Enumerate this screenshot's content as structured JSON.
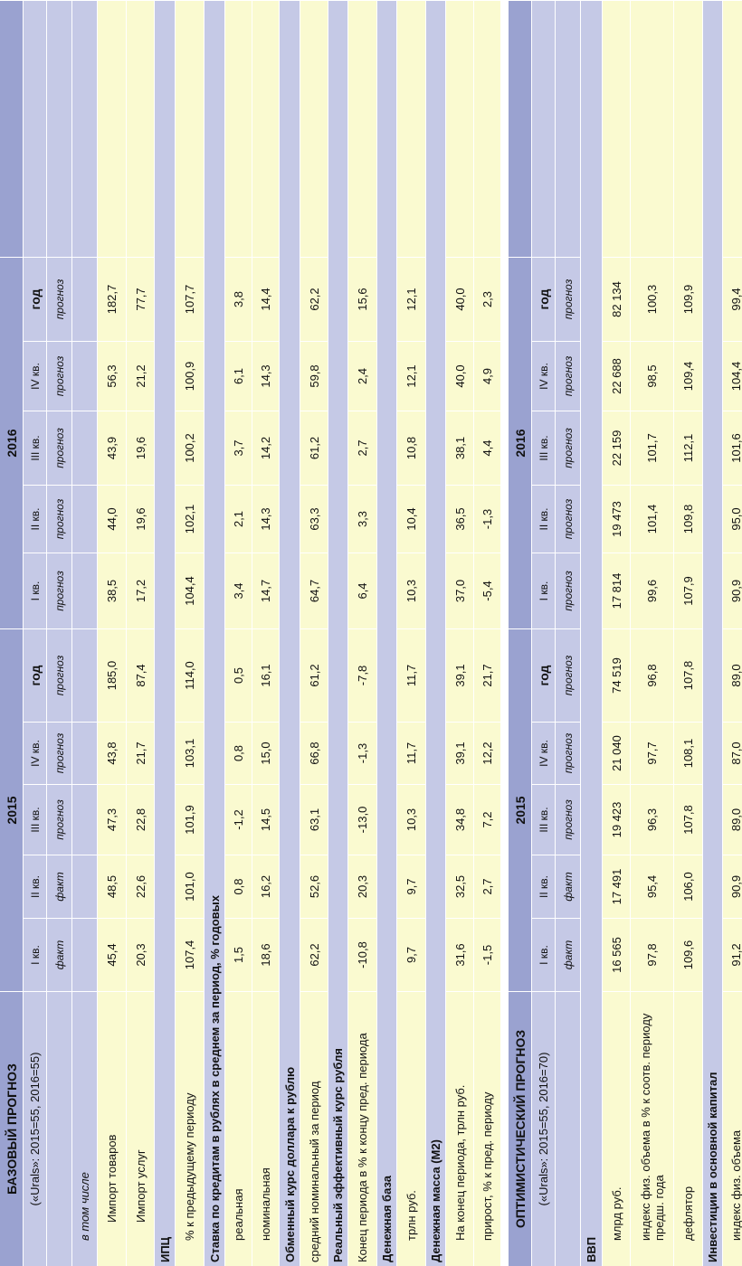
{
  "base": {
    "title": "БАЗОВЫЙ ПРОГНОЗ",
    "subtitle": "(«Urals»: 2015=55, 2016=55)",
    "year_2015": "2015",
    "year_2016": "2016",
    "quarters": [
      "I кв.",
      "II кв.",
      "III кв.",
      "IV кв.",
      "год",
      "I кв.",
      "II кв.",
      "III кв.",
      "IV кв.",
      "год"
    ],
    "kinds": [
      "факт",
      "факт",
      "прогноз",
      "прогноз",
      "прогноз",
      "прогноз",
      "прогноз",
      "прогноз",
      "прогноз",
      "прогноз"
    ],
    "rows": [
      {
        "label": "в том числе",
        "values": [
          "",
          "",
          "",
          "",
          "",
          "",
          "",
          "",
          "",
          ""
        ]
      },
      {
        "label": "Импорт товаров",
        "values": [
          "45,4",
          "48,5",
          "47,3",
          "43,8",
          "185,0",
          "38,5",
          "44,0",
          "43,9",
          "56,3",
          "182,7"
        ]
      },
      {
        "label": "Импорт услуг",
        "values": [
          "20,3",
          "22,6",
          "22,8",
          "21,7",
          "87,4",
          "17,2",
          "19,6",
          "19,6",
          "21,2",
          "77,7"
        ]
      },
      {
        "label": "ИПЦ",
        "values": [
          "",
          "",
          "",
          "",
          "",
          "",
          "",
          "",
          "",
          ""
        ]
      },
      {
        "label": "% к предыдущему периоду",
        "values": [
          "107,4",
          "101,0",
          "101,9",
          "103,1",
          "114,0",
          "104,4",
          "102,1",
          "100,2",
          "100,9",
          "107,7"
        ]
      },
      {
        "label": "Ставка по кредитам в рублях в среднем за период, % годовых",
        "values": [
          "",
          "",
          "",
          "",
          "",
          "",
          "",
          "",
          "",
          ""
        ]
      },
      {
        "label": "реальная",
        "values": [
          "1,5",
          "0,8",
          "-1,2",
          "0,8",
          "0,5",
          "3,4",
          "2,1",
          "3,7",
          "6,1",
          "3,8"
        ]
      },
      {
        "label": "номинальная",
        "values": [
          "18,6",
          "16,2",
          "14,5",
          "15,0",
          "16,1",
          "14,7",
          "14,3",
          "14,2",
          "14,3",
          "14,4"
        ]
      },
      {
        "label": "Обменный курс доллара к рублю",
        "values": [
          "",
          "",
          "",
          "",
          "",
          "",
          "",
          "",
          "",
          ""
        ]
      },
      {
        "label": "средний номинальный за период",
        "values": [
          "62,2",
          "52,6",
          "63,1",
          "66,8",
          "61,2",
          "64,7",
          "63,3",
          "61,2",
          "59,8",
          "62,2"
        ]
      },
      {
        "label": "Реальный эффективный курс рубля",
        "values": [
          "",
          "",
          "",
          "",
          "",
          "",
          "",
          "",
          "",
          ""
        ]
      },
      {
        "label": "Конец периода в % к концу пред. периода",
        "values": [
          "-10,8",
          "20,3",
          "-13,0",
          "-1,3",
          "-7,8",
          "6,4",
          "3,3",
          "2,7",
          "2,4",
          "15,6"
        ]
      },
      {
        "label": "Денежная база",
        "values": [
          "",
          "",
          "",
          "",
          "",
          "",
          "",
          "",
          "",
          ""
        ]
      },
      {
        "label": "трлн руб.",
        "values": [
          "9,7",
          "9,7",
          "10,3",
          "11,7",
          "11,7",
          "10,3",
          "10,4",
          "10,8",
          "12,1",
          "12,1"
        ]
      },
      {
        "label": "Денежная масса (М2)",
        "values": [
          "",
          "",
          "",
          "",
          "",
          "",
          "",
          "",
          "",
          ""
        ]
      },
      {
        "label": "На конец периода, трлн руб.",
        "values": [
          "31,6",
          "32,5",
          "34,8",
          "39,1",
          "39,1",
          "37,0",
          "36,5",
          "38,1",
          "40,0",
          "40,0"
        ]
      },
      {
        "label": "прирост, % к пред. периоду",
        "values": [
          "-1,5",
          "2,7",
          "7,2",
          "12,2",
          "21,7",
          "-5,4",
          "-1,3",
          "4,4",
          "4,9",
          "2,3"
        ]
      }
    ]
  },
  "optimistic": {
    "title": "ОПТИМИСТИЧЕСКИЙ ПРОГНОЗ",
    "subtitle": "(«Urals»: 2015=55, 2016=70)",
    "year_2015": "2015",
    "year_2016": "2016",
    "quarters": [
      "I кв.",
      "II кв.",
      "III кв.",
      "IV кв.",
      "год",
      "I кв.",
      "II кв.",
      "III кв.",
      "IV кв.",
      "год"
    ],
    "kinds": [
      "факт",
      "факт",
      "прогноз",
      "прогноз",
      "прогноз",
      "прогноз",
      "прогноз",
      "прогноз",
      "прогноз",
      "прогноз"
    ],
    "rows": [
      {
        "label": "ВВП",
        "values": [
          "",
          "",
          "",
          "",
          "",
          "",
          "",
          "",
          "",
          ""
        ]
      },
      {
        "label": "млрд руб.",
        "values": [
          "16 565",
          "17 491",
          "19 423",
          "21 040",
          "74 519",
          "17 814",
          "19 473",
          "22 159",
          "22 688",
          "82 134"
        ]
      },
      {
        "label": "индекс физ. объема в % к соотв. периоду предш. года",
        "values": [
          "97,8",
          "95,4",
          "96,3",
          "97,7",
          "96,8",
          "99,6",
          "101,4",
          "101,7",
          "98,5",
          "100,3"
        ]
      },
      {
        "label": "дефлятор",
        "values": [
          "109,6",
          "106,0",
          "107,8",
          "108,1",
          "107,8",
          "107,9",
          "109,8",
          "112,1",
          "109,4",
          "109,9"
        ]
      },
      {
        "label": "Инвестиции в основной капитал",
        "values": [
          "",
          "",
          "",
          "",
          "",
          "",
          "",
          "",
          "",
          ""
        ]
      },
      {
        "label": "индекс физ. объема",
        "values": [
          "91,2",
          "90,9",
          "89,0",
          "87,0",
          "89,0",
          "90,9",
          "95,0",
          "101,6",
          "104,4",
          "99,4"
        ]
      }
    ]
  }
}
